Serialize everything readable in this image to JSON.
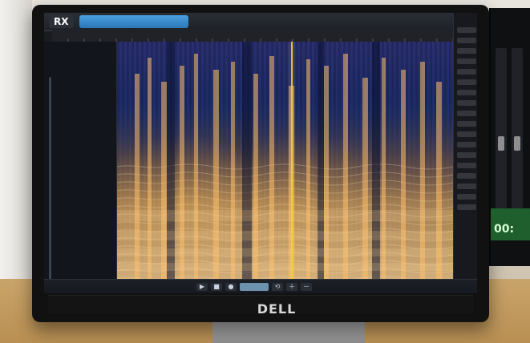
{
  "app": {
    "logo_text": "RX",
    "file_tab_label": "",
    "brand_text": "DELL"
  },
  "colors": {
    "accent_blue": "#3d8fd0",
    "playhead": "#f2d33a",
    "spec_blue": "#1a2b68",
    "spec_orange": "#f0a54a"
  },
  "second_monitor": {
    "readout": "00:"
  }
}
